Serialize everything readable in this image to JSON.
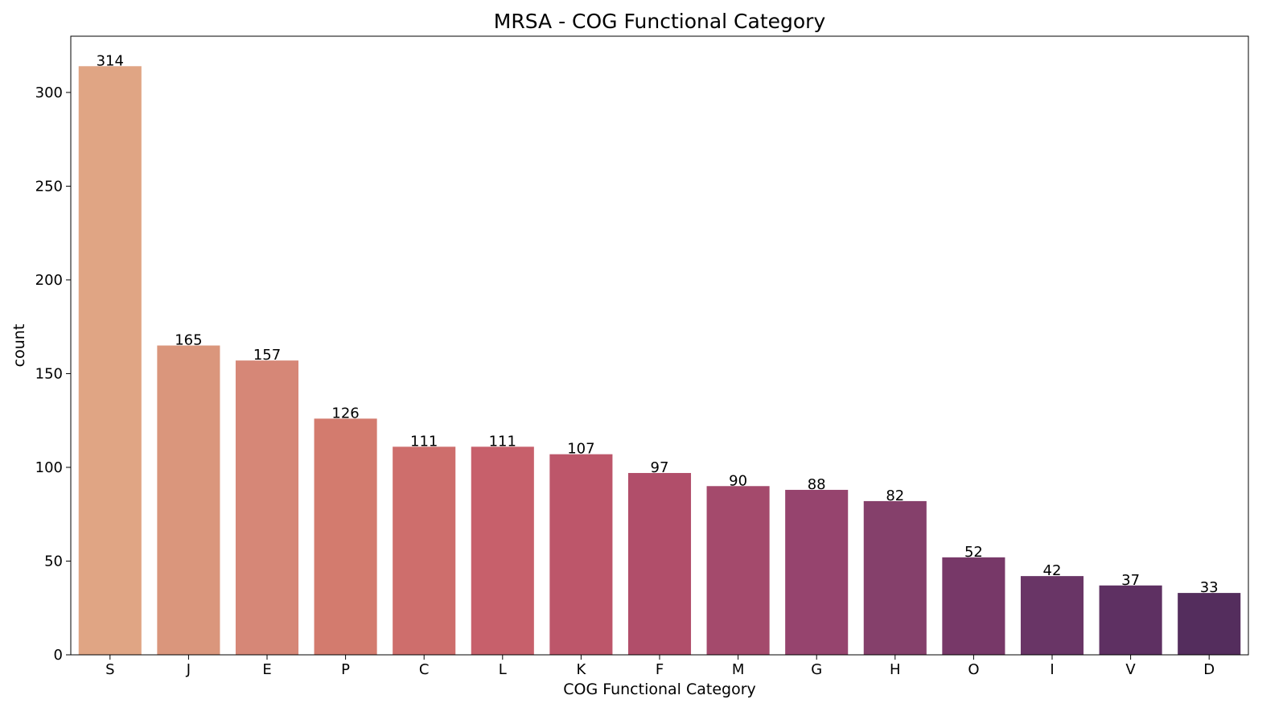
{
  "chart_data": {
    "type": "bar",
    "title": "MRSA - COG Functional Category",
    "xlabel": "COG Functional Category",
    "ylabel": "count",
    "categories": [
      "S",
      "J",
      "E",
      "P",
      "C",
      "L",
      "K",
      "F",
      "M",
      "G",
      "H",
      "O",
      "I",
      "V",
      "D"
    ],
    "values": [
      314,
      165,
      157,
      126,
      111,
      111,
      107,
      97,
      90,
      88,
      82,
      52,
      42,
      37,
      33
    ],
    "colors": [
      "#e0a584",
      "#da967c",
      "#d68777",
      "#d37b6e",
      "#ce6e6c",
      "#c7606b",
      "#bd566a",
      "#b14e6a",
      "#a44a6c",
      "#96446e",
      "#85406b",
      "#773868",
      "#693566",
      "#5e3062",
      "#542d5d"
    ],
    "ylim": [
      0,
      330
    ],
    "yticks": [
      0,
      50,
      100,
      150,
      200,
      250,
      300
    ],
    "grid": false,
    "legend": "none"
  }
}
